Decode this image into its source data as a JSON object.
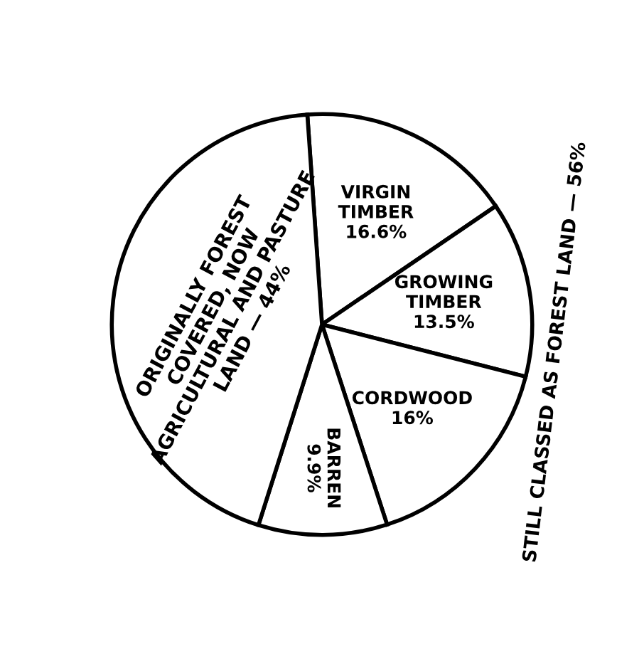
{
  "chart_data": {
    "type": "pie",
    "categories": [
      "VIRGIN TIMBER",
      "GROWING TIMBER",
      "CORDWOOD",
      "BARREN",
      "ORIGINALLY FOREST COVERED, NOW AGRICULTURAL AND PASTURE LAND"
    ],
    "values": [
      16.6,
      13.5,
      16,
      9.9,
      44
    ],
    "value_labels": [
      "16.6%",
      "13.5%",
      "16%",
      "9.9%",
      "— 44%"
    ],
    "colors": [
      "#ffffff",
      "#ffffff",
      "#ffffff",
      "#ffffff",
      "#ffffff"
    ],
    "annotations": [
      "STILL CLASSED AS FOREST LAND — 56%"
    ]
  }
}
